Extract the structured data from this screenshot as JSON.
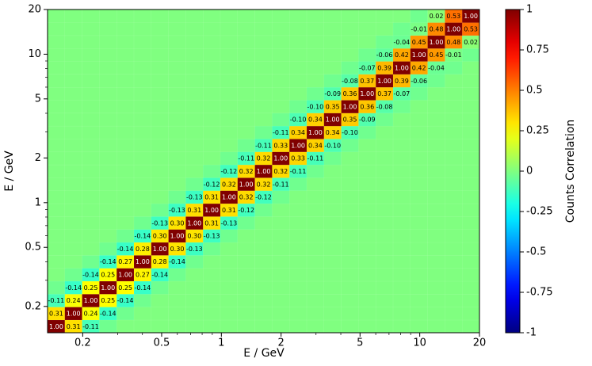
{
  "chart_data": {
    "type": "heatmap",
    "xlabel": "E / GeV",
    "ylabel": "E / GeV",
    "colorbar_label": "Counts Correlation",
    "xscale": "log",
    "yscale": "log",
    "xlim": [
      0.133,
      20
    ],
    "ylim": [
      0.133,
      20
    ],
    "xticks": [
      0.2,
      0.5,
      1,
      2,
      5,
      10,
      20
    ],
    "yticks": [
      0.2,
      0.5,
      1,
      2,
      5,
      10,
      20
    ],
    "xminorticks": [
      0.3,
      0.4,
      0.6,
      0.7,
      0.8,
      0.9,
      3,
      4,
      6,
      7,
      8,
      9
    ],
    "yminorticks": [
      0.3,
      0.4,
      0.6,
      0.7,
      0.8,
      0.9,
      3,
      4,
      6,
      7,
      8,
      9
    ],
    "colormap": "jet",
    "clim": [
      -1,
      1
    ],
    "cticks": [
      -1,
      -0.75,
      -0.5,
      -0.25,
      0,
      0.25,
      0.5,
      0.75,
      1
    ],
    "values": [
      [
        1,
        0.31,
        -0.11,
        -0.03,
        0,
        0,
        0,
        0,
        0,
        0,
        0,
        0,
        0,
        0,
        0,
        0,
        0,
        0,
        0,
        0,
        0,
        0,
        0,
        0,
        0
      ],
      [
        0.31,
        1,
        0.24,
        -0.14,
        -0.03,
        0,
        0,
        0,
        0,
        0,
        0,
        0,
        0,
        0,
        0,
        0,
        0,
        0,
        0,
        0,
        0,
        0,
        0,
        0,
        0
      ],
      [
        -0.11,
        0.24,
        1,
        0.25,
        -0.14,
        -0.03,
        0,
        0,
        0,
        0,
        0,
        0,
        0,
        0,
        0,
        0,
        0,
        0,
        0,
        0,
        0,
        0,
        0,
        0,
        0
      ],
      [
        -0.03,
        -0.14,
        0.25,
        1,
        0.25,
        -0.14,
        -0.03,
        0,
        0,
        0,
        0,
        0,
        0,
        0,
        0,
        0,
        0,
        0,
        0,
        0,
        0,
        0,
        0,
        0,
        0
      ],
      [
        0,
        -0.03,
        -0.14,
        0.25,
        1,
        0.27,
        -0.14,
        -0.03,
        0,
        0,
        0,
        0,
        0,
        0,
        0,
        0,
        0,
        0,
        0,
        0,
        0,
        0,
        0,
        0,
        0
      ],
      [
        0,
        0,
        -0.03,
        -0.14,
        0.27,
        1,
        0.28,
        -0.14,
        -0.03,
        0,
        0,
        0,
        0,
        0,
        0,
        0,
        0,
        0,
        0,
        0,
        0,
        0,
        0,
        0,
        0
      ],
      [
        0,
        0,
        0,
        -0.03,
        -0.14,
        0.28,
        1,
        0.3,
        -0.13,
        -0.03,
        0,
        0,
        0,
        0,
        0,
        0,
        0,
        0,
        0,
        0,
        0,
        0,
        0,
        0,
        0
      ],
      [
        0,
        0,
        0,
        0,
        -0.03,
        -0.14,
        0.3,
        1,
        0.3,
        -0.13,
        -0.03,
        0,
        0,
        0,
        0,
        0,
        0,
        0,
        0,
        0,
        0,
        0,
        0,
        0,
        0
      ],
      [
        0,
        0,
        0,
        0,
        0,
        -0.03,
        -0.13,
        0.3,
        1,
        0.31,
        -0.13,
        -0.03,
        0,
        0,
        0,
        0,
        0,
        0,
        0,
        0,
        0,
        0,
        0,
        0,
        0
      ],
      [
        0,
        0,
        0,
        0,
        0,
        0,
        -0.03,
        -0.13,
        0.31,
        1,
        0.31,
        -0.12,
        -0.03,
        0,
        0,
        0,
        0,
        0,
        0,
        0,
        0,
        0,
        0,
        0,
        0
      ],
      [
        0,
        0,
        0,
        0,
        0,
        0,
        0,
        -0.03,
        -0.13,
        0.31,
        1,
        0.32,
        -0.12,
        -0.03,
        0,
        0,
        0,
        0,
        0,
        0,
        0,
        0,
        0,
        0,
        0
      ],
      [
        0,
        0,
        0,
        0,
        0,
        0,
        0,
        0,
        -0.03,
        -0.12,
        0.32,
        1,
        0.32,
        -0.11,
        -0.03,
        0,
        0,
        0,
        0,
        0,
        0,
        0,
        0,
        0,
        0
      ],
      [
        0,
        0,
        0,
        0,
        0,
        0,
        0,
        0,
        0,
        -0.03,
        -0.12,
        0.32,
        1,
        0.32,
        -0.11,
        -0.03,
        0,
        0,
        0,
        0,
        0,
        0,
        0,
        0,
        0
      ],
      [
        0,
        0,
        0,
        0,
        0,
        0,
        0,
        0,
        0,
        0,
        -0.03,
        -0.11,
        0.32,
        1,
        0.33,
        -0.11,
        -0.03,
        0,
        0,
        0,
        0,
        0,
        0,
        0,
        0
      ],
      [
        0,
        0,
        0,
        0,
        0,
        0,
        0,
        0,
        0,
        0,
        0,
        -0.03,
        -0.11,
        0.33,
        1,
        0.34,
        -0.1,
        -0.03,
        0,
        0,
        0,
        0,
        0,
        0,
        0
      ],
      [
        0,
        0,
        0,
        0,
        0,
        0,
        0,
        0,
        0,
        0,
        0,
        0,
        -0.03,
        -0.11,
        0.34,
        1,
        0.34,
        -0.1,
        -0.03,
        0,
        0,
        0,
        0,
        0,
        0
      ],
      [
        0,
        0,
        0,
        0,
        0,
        0,
        0,
        0,
        0,
        0,
        0,
        0,
        0,
        -0.03,
        -0.1,
        0.34,
        1,
        0.35,
        -0.09,
        -0.03,
        0,
        0,
        0,
        0,
        0
      ],
      [
        0,
        0,
        0,
        0,
        0,
        0,
        0,
        0,
        0,
        0,
        0,
        0,
        0,
        0,
        -0.03,
        -0.1,
        0.35,
        1,
        0.36,
        -0.08,
        -0.03,
        0,
        0,
        0,
        0
      ],
      [
        0,
        0,
        0,
        0,
        0,
        0,
        0,
        0,
        0,
        0,
        0,
        0,
        0,
        0,
        0,
        -0.03,
        -0.09,
        0.36,
        1,
        0.37,
        -0.07,
        -0.03,
        0,
        0,
        0
      ],
      [
        0,
        0,
        0,
        0,
        0,
        0,
        0,
        0,
        0,
        0,
        0,
        0,
        0,
        0,
        0,
        0,
        -0.03,
        -0.08,
        0.37,
        1,
        0.39,
        -0.06,
        -0.03,
        0,
        0
      ],
      [
        0,
        0,
        0,
        0,
        0,
        0,
        0,
        0,
        0,
        0,
        0,
        0,
        0,
        0,
        0,
        0,
        0,
        -0.03,
        -0.07,
        0.39,
        1,
        0.42,
        -0.04,
        -0.03,
        0
      ],
      [
        0,
        0,
        0,
        0,
        0,
        0,
        0,
        0,
        0,
        0,
        0,
        0,
        0,
        0,
        0,
        0,
        0,
        0,
        -0.03,
        -0.06,
        0.42,
        1,
        0.45,
        -0.01,
        -0.03
      ],
      [
        0,
        0,
        0,
        0,
        0,
        0,
        0,
        0,
        0,
        0,
        0,
        0,
        0,
        0,
        0,
        0,
        0,
        0,
        0,
        -0.03,
        -0.04,
        0.45,
        1,
        0.48,
        0.02
      ],
      [
        0,
        0,
        0,
        0,
        0,
        0,
        0,
        0,
        0,
        0,
        0,
        0,
        0,
        0,
        0,
        0,
        0,
        0,
        0,
        0,
        -0.03,
        -0.01,
        0.48,
        1,
        0.53
      ],
      [
        0,
        0,
        0,
        0,
        0,
        0,
        0,
        0,
        0,
        0,
        0,
        0,
        0,
        0,
        0,
        0,
        0,
        0,
        0,
        0,
        0,
        -0.03,
        0.02,
        0.53,
        1
      ]
    ],
    "value_labels": [
      [
        "1.00",
        "0.31",
        "-0.11",
        null,
        null,
        null,
        null,
        null,
        null,
        null,
        null,
        null,
        null,
        null,
        null,
        null,
        null,
        null,
        null,
        null,
        null,
        null,
        null,
        null,
        null
      ],
      [
        "0.31",
        "1.00",
        "0.24",
        "-0.14",
        null,
        null,
        null,
        null,
        null,
        null,
        null,
        null,
        null,
        null,
        null,
        null,
        null,
        null,
        null,
        null,
        null,
        null,
        null,
        null,
        null
      ],
      [
        "-0.11",
        "0.24",
        "1.00",
        "0.25",
        "-0.14",
        null,
        null,
        null,
        null,
        null,
        null,
        null,
        null,
        null,
        null,
        null,
        null,
        null,
        null,
        null,
        null,
        null,
        null,
        null,
        null
      ],
      [
        null,
        "-0.14",
        "0.25",
        "1.00",
        "0.25",
        "-0.14",
        null,
        null,
        null,
        null,
        null,
        null,
        null,
        null,
        null,
        null,
        null,
        null,
        null,
        null,
        null,
        null,
        null,
        null,
        null
      ],
      [
        null,
        null,
        "-0.14",
        "0.25",
        "1.00",
        "0.27",
        "-0.14",
        null,
        null,
        null,
        null,
        null,
        null,
        null,
        null,
        null,
        null,
        null,
        null,
        null,
        null,
        null,
        null,
        null,
        null
      ],
      [
        null,
        null,
        null,
        "-0.14",
        "0.27",
        "1.00",
        "0.28",
        "-0.14",
        null,
        null,
        null,
        null,
        null,
        null,
        null,
        null,
        null,
        null,
        null,
        null,
        null,
        null,
        null,
        null,
        null
      ],
      [
        null,
        null,
        null,
        null,
        "-0.14",
        "0.28",
        "1.00",
        "0.30",
        "-0.13",
        null,
        null,
        null,
        null,
        null,
        null,
        null,
        null,
        null,
        null,
        null,
        null,
        null,
        null,
        null,
        null
      ],
      [
        null,
        null,
        null,
        null,
        null,
        "-0.14",
        "0.30",
        "1.00",
        "0.30",
        "-0.13",
        null,
        null,
        null,
        null,
        null,
        null,
        null,
        null,
        null,
        null,
        null,
        null,
        null,
        null,
        null
      ],
      [
        null,
        null,
        null,
        null,
        null,
        null,
        "-0.13",
        "0.30",
        "1.00",
        "0.31",
        "-0.13",
        null,
        null,
        null,
        null,
        null,
        null,
        null,
        null,
        null,
        null,
        null,
        null,
        null,
        null
      ],
      [
        null,
        null,
        null,
        null,
        null,
        null,
        null,
        "-0.13",
        "0.31",
        "1.00",
        "0.31",
        "-0.12",
        null,
        null,
        null,
        null,
        null,
        null,
        null,
        null,
        null,
        null,
        null,
        null,
        null
      ],
      [
        null,
        null,
        null,
        null,
        null,
        null,
        null,
        null,
        "-0.13",
        "0.31",
        "1.00",
        "0.32",
        "-0.12",
        null,
        null,
        null,
        null,
        null,
        null,
        null,
        null,
        null,
        null,
        null,
        null
      ],
      [
        null,
        null,
        null,
        null,
        null,
        null,
        null,
        null,
        null,
        "-0.12",
        "0.32",
        "1.00",
        "0.32",
        "-0.11",
        null,
        null,
        null,
        null,
        null,
        null,
        null,
        null,
        null,
        null,
        null
      ],
      [
        null,
        null,
        null,
        null,
        null,
        null,
        null,
        null,
        null,
        null,
        "-0.12",
        "0.32",
        "1.00",
        "0.32",
        "-0.11",
        null,
        null,
        null,
        null,
        null,
        null,
        null,
        null,
        null,
        null
      ],
      [
        null,
        null,
        null,
        null,
        null,
        null,
        null,
        null,
        null,
        null,
        null,
        "-0.11",
        "0.32",
        "1.00",
        "0.33",
        "-0.11",
        null,
        null,
        null,
        null,
        null,
        null,
        null,
        null,
        null
      ],
      [
        null,
        null,
        null,
        null,
        null,
        null,
        null,
        null,
        null,
        null,
        null,
        null,
        "-0.11",
        "0.33",
        "1.00",
        "0.34",
        "-0.10",
        null,
        null,
        null,
        null,
        null,
        null,
        null,
        null
      ],
      [
        null,
        null,
        null,
        null,
        null,
        null,
        null,
        null,
        null,
        null,
        null,
        null,
        null,
        "-0.11",
        "0.34",
        "1.00",
        "0.34",
        "-0.10",
        null,
        null,
        null,
        null,
        null,
        null,
        null
      ],
      [
        null,
        null,
        null,
        null,
        null,
        null,
        null,
        null,
        null,
        null,
        null,
        null,
        null,
        null,
        "-0.10",
        "0.34",
        "1.00",
        "0.35",
        "-0.09",
        null,
        null,
        null,
        null,
        null,
        null
      ],
      [
        null,
        null,
        null,
        null,
        null,
        null,
        null,
        null,
        null,
        null,
        null,
        null,
        null,
        null,
        null,
        "-0.10",
        "0.35",
        "1.00",
        "0.36",
        "-0.08",
        null,
        null,
        null,
        null,
        null
      ],
      [
        null,
        null,
        null,
        null,
        null,
        null,
        null,
        null,
        null,
        null,
        null,
        null,
        null,
        null,
        null,
        null,
        "-0.09",
        "0.36",
        "1.00",
        "0.37",
        "-0.07",
        null,
        null,
        null,
        null
      ],
      [
        null,
        null,
        null,
        null,
        null,
        null,
        null,
        null,
        null,
        null,
        null,
        null,
        null,
        null,
        null,
        null,
        null,
        "-0.08",
        "0.37",
        "1.00",
        "0.39",
        "-0.06",
        null,
        null,
        null
      ],
      [
        null,
        null,
        null,
        null,
        null,
        null,
        null,
        null,
        null,
        null,
        null,
        null,
        null,
        null,
        null,
        null,
        null,
        null,
        "-0.07",
        "0.39",
        "1.00",
        "0.42",
        "-0.04",
        null,
        null
      ],
      [
        null,
        null,
        null,
        null,
        null,
        null,
        null,
        null,
        null,
        null,
        null,
        null,
        null,
        null,
        null,
        null,
        null,
        null,
        null,
        "-0.06",
        "0.42",
        "1.00",
        "0.45",
        "-0.01",
        null
      ],
      [
        null,
        null,
        null,
        null,
        null,
        null,
        null,
        null,
        null,
        null,
        null,
        null,
        null,
        null,
        null,
        null,
        null,
        null,
        null,
        null,
        "-0.04",
        "0.45",
        "1.00",
        "0.48",
        "0.02"
      ],
      [
        null,
        null,
        null,
        null,
        null,
        null,
        null,
        null,
        null,
        null,
        null,
        null,
        null,
        null,
        null,
        null,
        null,
        null,
        null,
        null,
        null,
        "-0.01",
        "0.48",
        "1.00",
        "0.53"
      ],
      [
        null,
        null,
        null,
        null,
        null,
        null,
        null,
        null,
        null,
        null,
        null,
        null,
        null,
        null,
        null,
        null,
        null,
        null,
        null,
        null,
        null,
        null,
        "0.02",
        "0.53",
        "1.00"
      ]
    ]
  }
}
